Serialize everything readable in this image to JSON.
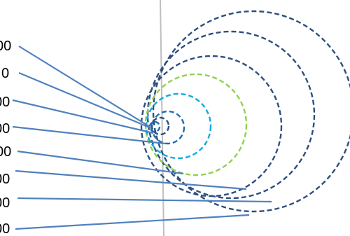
{
  "colors": {
    "leader": "#4f81bd",
    "axis": "#bfbfbf",
    "ring_dark": "#2e4f7f",
    "ring_green": "#92d050",
    "ring_cyan": "#17a8e0",
    "ring_blue": "#1f6cb4"
  },
  "labels": [
    {
      "text": "00"
    },
    {
      "text": "0"
    },
    {
      "text": "00"
    },
    {
      "text": "00"
    },
    {
      "text": "00"
    },
    {
      "text": "00"
    },
    {
      "text": "00"
    },
    {
      "text": "00"
    }
  ]
}
